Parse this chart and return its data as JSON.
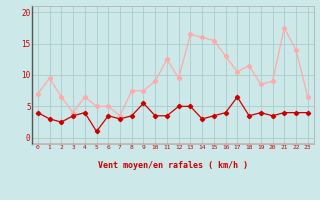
{
  "hours": [
    0,
    1,
    2,
    3,
    4,
    5,
    6,
    7,
    8,
    9,
    10,
    11,
    12,
    13,
    14,
    15,
    16,
    17,
    18,
    19,
    20,
    21,
    22,
    23
  ],
  "wind_avg": [
    4,
    3,
    2.5,
    3.5,
    4,
    1,
    3.5,
    3,
    3.5,
    5.5,
    3.5,
    3.5,
    5,
    5,
    3,
    3.5,
    4,
    6.5,
    3.5,
    4,
    3.5,
    4,
    4,
    4
  ],
  "wind_gust": [
    7,
    9.5,
    6.5,
    4,
    6.5,
    5,
    5,
    3.5,
    7.5,
    7.5,
    9,
    12.5,
    9.5,
    16.5,
    16,
    15.5,
    13,
    10.5,
    11.5,
    8.5,
    9,
    17.5,
    14,
    6.5
  ],
  "avg_color": "#cc0000",
  "gust_color": "#ffaaaa",
  "bg_color": "#cce8e8",
  "grid_color": "#aacccc",
  "xlabel": "Vent moyen/en rafales ( km/h )",
  "ylabel_ticks": [
    0,
    5,
    10,
    15,
    20
  ],
  "ylim": [
    -1,
    21
  ],
  "xlim": [
    -0.5,
    23.5
  ]
}
